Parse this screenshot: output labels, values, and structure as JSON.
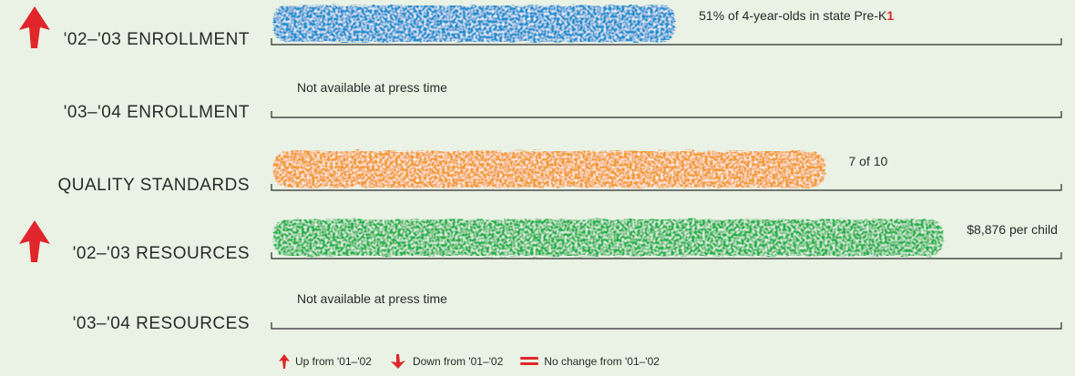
{
  "chart_data": {
    "type": "bar",
    "categories": [
      "'02–'03 ENROLLMENT",
      "'03–'04 ENROLLMENT",
      "QUALITY STANDARDS",
      "'02–'03 RESOURCES",
      "'03–'04 RESOURCES"
    ],
    "values": [
      0.51,
      null,
      0.7,
      0.85,
      null
    ],
    "value_labels": [
      "51% of 4-year-olds in state Pre-K",
      "Not available at press time",
      "7 of 10",
      "$8,876 per child",
      "Not available at press time"
    ],
    "footnote_marks": [
      "1",
      "",
      "",
      "",
      ""
    ],
    "trend": [
      "up",
      "",
      "",
      "up",
      ""
    ],
    "bar_colors": [
      "#1f8fd0",
      "",
      "#f39a2e",
      "#21b24b",
      ""
    ],
    "xlim": [
      0,
      1
    ],
    "grid": false
  },
  "legend": {
    "up_label": "Up from '01–'02",
    "down_label": "Down from '01–'02",
    "nochange_label": "No change from '01–'02"
  },
  "colors": {
    "background": "#e9f2e4",
    "arrow_red": "#e0262a",
    "text": "#2a2a2a"
  }
}
